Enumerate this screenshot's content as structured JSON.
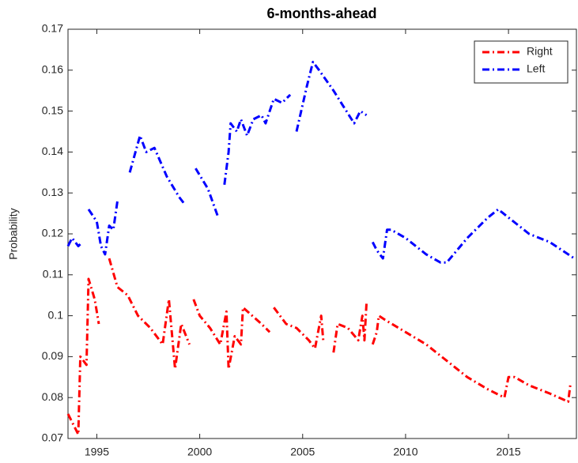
{
  "chart_data": {
    "type": "line",
    "title": "6-months-ahead",
    "y_label": "Probability",
    "xlim": [
      1993.6,
      2018.3
    ],
    "xticks": [
      1995,
      2000,
      2005,
      2010,
      2015
    ],
    "ylim": [
      0.07,
      0.17
    ],
    "yticks": [
      0.07,
      0.08,
      0.09,
      0.1,
      0.11,
      0.12,
      0.13,
      0.14,
      0.15,
      0.16,
      0.17
    ],
    "grid": false,
    "legend": "top-right",
    "series": [
      {
        "name": "Right",
        "color": "#ff0000",
        "x": [
          1993.6,
          1994.0,
          1994.1,
          1994.2,
          1994.5,
          1994.6,
          1994.9,
          1995.1,
          null,
          1995.6,
          1996.0,
          1996.5,
          1997.0,
          1997.6,
          1998.2,
          1998.5,
          1998.8,
          1999.1,
          1999.5,
          null,
          1999.7,
          2000.0,
          2000.5,
          2001.0,
          2001.3,
          2001.4,
          2001.7,
          2002.0,
          2002.1,
          2003.0,
          2003.4,
          null,
          2003.6,
          2004.2,
          2004.7,
          2005.3,
          2005.6,
          2005.9,
          2006.0,
          null,
          2006.5,
          2006.7,
          2007.2,
          2007.7,
          2007.9,
          2008.0,
          2008.1,
          null,
          2008.4,
          2008.6,
          2008.7,
          2009.0,
          2010.0,
          2011.0,
          2012.0,
          2013.0,
          2014.0,
          2014.8,
          2015.0,
          2015.3,
          2016.0,
          2017.0,
          2017.9,
          2018.0
        ],
        "values": [
          0.076,
          0.072,
          0.071,
          0.09,
          0.088,
          0.109,
          0.104,
          0.098,
          null,
          0.114,
          0.107,
          0.105,
          0.1,
          0.097,
          0.093,
          0.104,
          0.087,
          0.098,
          0.093,
          null,
          0.104,
          0.1,
          0.097,
          0.093,
          0.101,
          0.087,
          0.095,
          0.093,
          0.102,
          0.098,
          0.096,
          null,
          0.102,
          0.098,
          0.097,
          0.094,
          0.092,
          0.1,
          0.094,
          null,
          0.091,
          0.098,
          0.097,
          0.094,
          0.1,
          0.094,
          0.103,
          null,
          0.093,
          0.096,
          0.1,
          0.099,
          0.096,
          0.093,
          0.089,
          0.085,
          0.082,
          0.08,
          0.085,
          0.085,
          0.083,
          0.081,
          0.079,
          0.083
        ]
      },
      {
        "name": "Left",
        "color": "#0000ff",
        "x": [
          1993.6,
          1993.8,
          1994.1,
          1994.3,
          null,
          1994.6,
          1995.0,
          1995.2,
          1995.4,
          1995.6,
          1995.8,
          1996.0,
          null,
          1996.6,
          1997.1,
          1997.4,
          1997.8,
          1998.4,
          1999.0,
          1999.3,
          null,
          1999.8,
          2000.4,
          2000.9,
          null,
          2001.2,
          2001.4,
          2001.5,
          2001.8,
          2002.0,
          2002.3,
          2002.6,
          2003.0,
          2003.2,
          2003.6,
          2004.0,
          2004.4,
          null,
          2004.7,
          2005.2,
          2005.5,
          2005.8,
          2006.5,
          2007.0,
          2007.5,
          2007.8,
          2008.1,
          null,
          2008.4,
          2008.6,
          2008.9,
          2009.1,
          2009.3,
          2010.0,
          2011.0,
          2011.7,
          2012.0,
          2013.0,
          2014.0,
          2014.5,
          2015.0,
          2016.0,
          2017.0,
          2018.2
        ],
        "values": [
          0.117,
          0.119,
          0.117,
          0.118,
          null,
          0.126,
          0.123,
          0.117,
          0.115,
          0.122,
          0.121,
          0.128,
          null,
          0.135,
          0.144,
          0.14,
          0.141,
          0.134,
          0.129,
          0.127,
          null,
          0.136,
          0.131,
          0.124,
          null,
          0.132,
          0.14,
          0.147,
          0.145,
          0.148,
          0.144,
          0.148,
          0.149,
          0.147,
          0.153,
          0.152,
          0.154,
          null,
          0.145,
          0.156,
          0.162,
          0.16,
          0.155,
          0.151,
          0.147,
          0.15,
          0.149,
          null,
          0.118,
          0.116,
          0.114,
          0.121,
          0.121,
          0.119,
          0.115,
          0.113,
          0.113,
          0.119,
          0.124,
          0.126,
          0.124,
          0.12,
          0.118,
          0.114
        ]
      }
    ]
  }
}
